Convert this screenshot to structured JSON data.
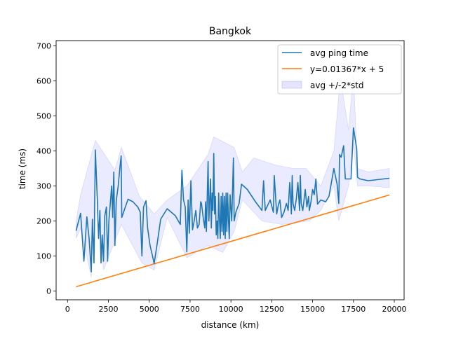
{
  "chart_data": {
    "type": "line",
    "title": "Bangkok",
    "xlabel": "distance (km)",
    "ylabel": "time (ms)",
    "xlim": [
      -700,
      20600
    ],
    "ylim": [
      -25,
      715
    ],
    "x_ticks": [
      0,
      2500,
      5000,
      7500,
      10000,
      12500,
      15000,
      17500,
      20000
    ],
    "y_ticks": [
      0,
      100,
      200,
      300,
      400,
      500,
      600,
      700
    ],
    "legend_position": "top-right",
    "grid": false,
    "series": [
      {
        "name": "avg ping time",
        "color": "#1f77b4",
        "points": [
          [
            520,
            172
          ],
          [
            800,
            222
          ],
          [
            1000,
            85
          ],
          [
            1180,
            212
          ],
          [
            1320,
            150
          ],
          [
            1450,
            55
          ],
          [
            1520,
            205
          ],
          [
            1620,
            80
          ],
          [
            1700,
            403
          ],
          [
            1820,
            260
          ],
          [
            1900,
            150
          ],
          [
            1980,
            230
          ],
          [
            2050,
            80
          ],
          [
            2120,
            160
          ],
          [
            2200,
            85
          ],
          [
            2280,
            215
          ],
          [
            2380,
            240
          ],
          [
            2450,
            85
          ],
          [
            2530,
            200
          ],
          [
            2620,
            252
          ],
          [
            2700,
            300
          ],
          [
            2760,
            210
          ],
          [
            2830,
            340
          ],
          [
            2900,
            130
          ],
          [
            2980,
            258
          ],
          [
            3100,
            300
          ],
          [
            3200,
            350
          ],
          [
            3280,
            386
          ],
          [
            3320,
            210
          ],
          [
            3500,
            235
          ],
          [
            3700,
            262
          ],
          [
            4000,
            255
          ],
          [
            4300,
            240
          ],
          [
            4450,
            225
          ],
          [
            4550,
            100
          ],
          [
            4650,
            240
          ],
          [
            4800,
            258
          ],
          [
            4900,
            180
          ],
          [
            5050,
            130
          ],
          [
            5200,
            100
          ],
          [
            5300,
            78
          ],
          [
            5500,
            140
          ],
          [
            5700,
            205
          ],
          [
            6100,
            235
          ],
          [
            6600,
            215
          ],
          [
            6900,
            190
          ],
          [
            7000,
            345
          ],
          [
            7100,
            260
          ],
          [
            7200,
            240
          ],
          [
            7300,
            112
          ],
          [
            7380,
            260
          ],
          [
            7450,
            165
          ],
          [
            7550,
            315
          ],
          [
            7650,
            175
          ],
          [
            7750,
            200
          ],
          [
            7850,
            230
          ],
          [
            7950,
            180
          ],
          [
            8050,
            190
          ],
          [
            8150,
            255
          ],
          [
            8200,
            250
          ],
          [
            8300,
            210
          ],
          [
            8400,
            180
          ],
          [
            8450,
            255
          ],
          [
            8500,
            170
          ],
          [
            8600,
            370
          ],
          [
            8650,
            200
          ],
          [
            8750,
            320
          ],
          [
            8800,
            180
          ],
          [
            8850,
            280
          ],
          [
            8900,
            230
          ],
          [
            8950,
            393
          ],
          [
            9000,
            220
          ],
          [
            9050,
            270
          ],
          [
            9100,
            160
          ],
          [
            9150,
            200
          ],
          [
            9200,
            150
          ],
          [
            9250,
            280
          ],
          [
            9300,
            200
          ],
          [
            9350,
            150
          ],
          [
            9400,
            270
          ],
          [
            9450,
            170
          ],
          [
            9500,
            280
          ],
          [
            9550,
            160
          ],
          [
            9600,
            270
          ],
          [
            9650,
            150
          ],
          [
            9700,
            280
          ],
          [
            9750,
            170
          ],
          [
            9800,
            280
          ],
          [
            9850,
            200
          ],
          [
            9900,
            150
          ],
          [
            9950,
            275
          ],
          [
            10050,
            200
          ],
          [
            10150,
            380
          ],
          [
            10200,
            200
          ],
          [
            10300,
            225
          ],
          [
            10500,
            250
          ],
          [
            10650,
            305
          ],
          [
            11000,
            290
          ],
          [
            11500,
            255
          ],
          [
            11900,
            230
          ],
          [
            12000,
            315
          ],
          [
            12100,
            230
          ],
          [
            12200,
            240
          ],
          [
            12400,
            260
          ],
          [
            12600,
            225
          ],
          [
            12650,
            330
          ],
          [
            12800,
            220
          ],
          [
            12900,
            245
          ],
          [
            13000,
            260
          ],
          [
            13100,
            210
          ],
          [
            13250,
            225
          ],
          [
            13400,
            250
          ],
          [
            13500,
            230
          ],
          [
            13600,
            310
          ],
          [
            13650,
            270
          ],
          [
            13700,
            220
          ],
          [
            13750,
            330
          ],
          [
            13800,
            250
          ],
          [
            13900,
            230
          ],
          [
            14000,
            262
          ],
          [
            14100,
            310
          ],
          [
            14200,
            230
          ],
          [
            14250,
            330
          ],
          [
            14300,
            250
          ],
          [
            14400,
            230
          ],
          [
            14550,
            290
          ],
          [
            14650,
            240
          ],
          [
            14750,
            270
          ],
          [
            14800,
            230
          ],
          [
            14900,
            255
          ],
          [
            15000,
            290
          ],
          [
            15100,
            275
          ],
          [
            15200,
            320
          ],
          [
            15300,
            248
          ],
          [
            15500,
            260
          ],
          [
            15800,
            255
          ],
          [
            16000,
            270
          ],
          [
            16300,
            350
          ],
          [
            16500,
            305
          ],
          [
            16600,
            250
          ],
          [
            16650,
            390
          ],
          [
            16750,
            382
          ],
          [
            16900,
            415
          ],
          [
            17000,
            320
          ],
          [
            17350,
            320
          ],
          [
            17500,
            466
          ],
          [
            17700,
            405
          ],
          [
            17750,
            325
          ],
          [
            17900,
            320
          ],
          [
            18400,
            315
          ],
          [
            19700,
            322
          ]
        ]
      },
      {
        "name": "y=0.01367*x + 5",
        "color": "#ff7f0e",
        "points": [
          [
            520,
            12.1
          ],
          [
            19700,
            274.3
          ]
        ]
      },
      {
        "name": "avg +/-2*std",
        "color": "#0000ff",
        "type": "band",
        "upper": [
          [
            520,
            200
          ],
          [
            800,
            275
          ],
          [
            1700,
            430
          ],
          [
            2900,
            345
          ],
          [
            3300,
            410
          ],
          [
            4400,
            270
          ],
          [
            5300,
            220
          ],
          [
            6100,
            260
          ],
          [
            7300,
            300
          ],
          [
            8600,
            390
          ],
          [
            8950,
            440
          ],
          [
            10200,
            410
          ],
          [
            10700,
            340
          ],
          [
            11400,
            380
          ],
          [
            12700,
            360
          ],
          [
            13800,
            350
          ],
          [
            14600,
            350
          ],
          [
            15500,
            300
          ],
          [
            16300,
            400
          ],
          [
            16700,
            610
          ],
          [
            17200,
            460
          ],
          [
            17500,
            620
          ],
          [
            17750,
            350
          ],
          [
            18400,
            340
          ],
          [
            19700,
            350
          ]
        ],
        "lower": [
          [
            520,
            150
          ],
          [
            800,
            180
          ],
          [
            1450,
            40
          ],
          [
            1700,
            350
          ],
          [
            2200,
            60
          ],
          [
            3300,
            190
          ],
          [
            4550,
            80
          ],
          [
            5300,
            60
          ],
          [
            6100,
            210
          ],
          [
            7300,
            95
          ],
          [
            8600,
            130
          ],
          [
            9500,
            110
          ],
          [
            10200,
            170
          ],
          [
            10700,
            260
          ],
          [
            11900,
            200
          ],
          [
            13100,
            190
          ],
          [
            14800,
            200
          ],
          [
            15500,
            230
          ],
          [
            16300,
            300
          ],
          [
            16600,
            200
          ],
          [
            17200,
            300
          ],
          [
            17500,
            420
          ],
          [
            17750,
            300
          ],
          [
            18400,
            300
          ],
          [
            19700,
            295
          ]
        ]
      }
    ]
  }
}
